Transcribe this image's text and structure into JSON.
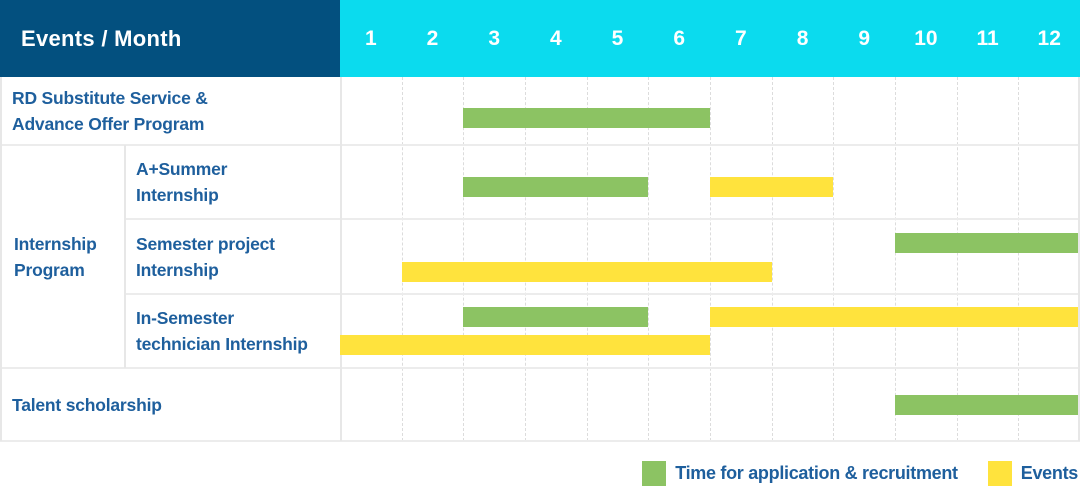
{
  "colors": {
    "header_bg": "#03507f",
    "months_bg": "#0bdbee",
    "header_text": "#ffffff",
    "label_text": "#1e5f9d",
    "recruitment_green": "#8cc363",
    "events_yellow": "#ffe33d",
    "grid_line": "#dcdcdc",
    "divider": "#ececec"
  },
  "chart_data": {
    "type": "bar",
    "subtype": "gantt",
    "title": "Events / Month",
    "x_axis": {
      "label": "Month",
      "ticks": [
        "1",
        "2",
        "3",
        "4",
        "5",
        "6",
        "7",
        "8",
        "9",
        "10",
        "11",
        "12"
      ],
      "range": [
        1,
        12
      ]
    },
    "grid": "dashed-vertical",
    "legend_position": "bottom-right",
    "series_legend": [
      {
        "key": "recruitment",
        "label": "Time for application & recruitment",
        "color": "#8cc363"
      },
      {
        "key": "events",
        "label": "Events",
        "color": "#ffe33d"
      }
    ],
    "row_groups": [
      {
        "label": "Internship\nProgram",
        "start_row": 1,
        "end_row": 3
      }
    ],
    "rows": [
      {
        "label": "RD Substitute Service &\nAdvance Offer Program",
        "group": "",
        "bars": [
          {
            "series": "recruitment",
            "start_month": 3,
            "end_month": 6,
            "lane": 0
          }
        ]
      },
      {
        "label": "A+Summer\nInternship",
        "group": "Internship Program",
        "bars": [
          {
            "series": "recruitment",
            "start_month": 3,
            "end_month": 5,
            "lane": 0
          },
          {
            "series": "events",
            "start_month": 7,
            "end_month": 8,
            "lane": 0
          }
        ]
      },
      {
        "label": "Semester project\nInternship",
        "group": "Internship Program",
        "bars": [
          {
            "series": "recruitment",
            "start_month": 10,
            "end_month": 12,
            "lane": 0
          },
          {
            "series": "events",
            "start_month": 2,
            "end_month": 7,
            "lane": 1
          }
        ]
      },
      {
        "label": "In-Semester\ntechnician Internship",
        "group": "Internship Program",
        "bars": [
          {
            "series": "recruitment",
            "start_month": 3,
            "end_month": 5,
            "lane": 0
          },
          {
            "series": "events",
            "start_month": 7,
            "end_month": 12,
            "lane": 0
          },
          {
            "series": "events",
            "start_month": 1,
            "end_month": 6,
            "lane": 1
          }
        ]
      },
      {
        "label": "Talent scholarship",
        "group": "",
        "bars": [
          {
            "series": "recruitment",
            "start_month": 10,
            "end_month": 12,
            "lane": 0
          }
        ]
      }
    ]
  }
}
